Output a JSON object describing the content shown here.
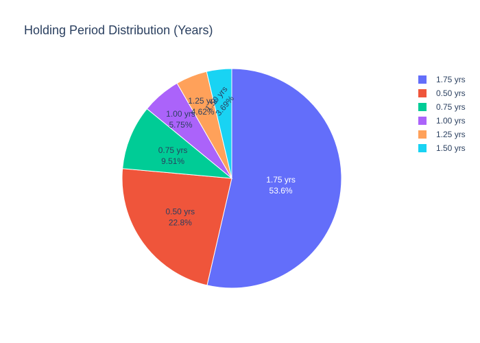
{
  "chart_data": {
    "type": "pie",
    "title": "Holding Period Distribution (Years)",
    "legend_position": "top-right",
    "slices": [
      {
        "label": "1.75 yrs",
        "percent_label": "53.6%",
        "value": 53.6,
        "color": "#636efa"
      },
      {
        "label": "0.50 yrs",
        "percent_label": "22.8%",
        "value": 22.8,
        "color": "#ef553b"
      },
      {
        "label": "0.75 yrs",
        "percent_label": "9.51%",
        "value": 9.51,
        "color": "#00cc96"
      },
      {
        "label": "1.00 yrs",
        "percent_label": "5.75%",
        "value": 5.75,
        "color": "#ab63fa"
      },
      {
        "label": "1.25 yrs",
        "percent_label": "4.62%",
        "value": 4.62,
        "color": "#ffa15a"
      },
      {
        "label": "1.50 yrs",
        "percent_label": "3.69%",
        "value": 3.69,
        "color": "#19d3f3"
      }
    ]
  }
}
